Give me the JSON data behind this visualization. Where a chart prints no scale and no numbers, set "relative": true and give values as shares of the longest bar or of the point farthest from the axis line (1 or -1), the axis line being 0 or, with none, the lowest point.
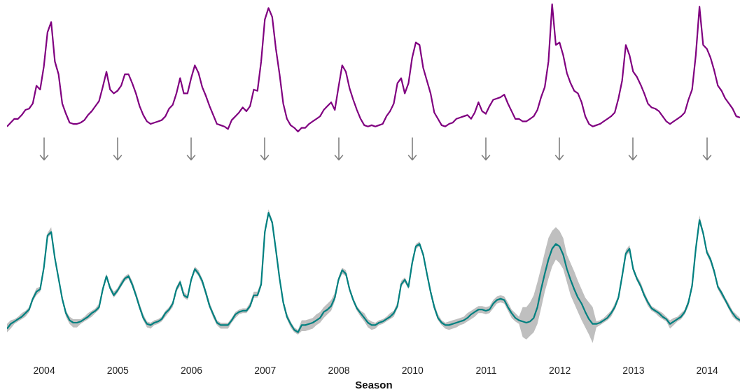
{
  "chart_data": [
    {
      "type": "line",
      "relative": true,
      "tick_labels": false,
      "categories": [
        null,
        null,
        null,
        null,
        null,
        null,
        null,
        null,
        null,
        null,
        "2004",
        null,
        null,
        null,
        null,
        null,
        null,
        null,
        null,
        null,
        null,
        null,
        null,
        null,
        null,
        null,
        null,
        null,
        null,
        null,
        "2005",
        null,
        null,
        null,
        null,
        null,
        null,
        null,
        null,
        null,
        null,
        null,
        null,
        null,
        null,
        null,
        null,
        null,
        null,
        null,
        "2006",
        null,
        null,
        null,
        null,
        null,
        null,
        null,
        null,
        null,
        null,
        null,
        null,
        null,
        null,
        null,
        null,
        null,
        null,
        null,
        "2007",
        null,
        null,
        null,
        null,
        null,
        null,
        null,
        null,
        null,
        null,
        null,
        null,
        null,
        null,
        null,
        null,
        null,
        null,
        null,
        "2008",
        null,
        null,
        null,
        null,
        null,
        null,
        null,
        null,
        null,
        null,
        null,
        null,
        null,
        null,
        null,
        null,
        null,
        null,
        null,
        "2010",
        null,
        null,
        null,
        null,
        null,
        null,
        null,
        null,
        null,
        null,
        null,
        null,
        null,
        null,
        null,
        null,
        null,
        null,
        null,
        "2011",
        null,
        null,
        null,
        null,
        null,
        null,
        null,
        null,
        null,
        null,
        null,
        null,
        null,
        null,
        null,
        null,
        null,
        null,
        null,
        "2012",
        null,
        null,
        null,
        null,
        null,
        null,
        null,
        null,
        null,
        null,
        null,
        null,
        null,
        null,
        null,
        null,
        null,
        null,
        null,
        "2013",
        null,
        null,
        null,
        null,
        null,
        null,
        null,
        null,
        null,
        null,
        null,
        null,
        null,
        null,
        null,
        null,
        null,
        null,
        null,
        "2014",
        null,
        null,
        null,
        null,
        null,
        null,
        null,
        null,
        null
      ],
      "series": [
        {
          "color": "#800080",
          "values": [
            0.04,
            0.07,
            0.1,
            0.1,
            0.13,
            0.17,
            0.18,
            0.22,
            0.36,
            0.33,
            0.51,
            0.78,
            0.86,
            0.55,
            0.45,
            0.22,
            0.14,
            0.07,
            0.06,
            0.06,
            0.07,
            0.09,
            0.13,
            0.16,
            0.2,
            0.24,
            0.35,
            0.47,
            0.33,
            0.3,
            0.32,
            0.36,
            0.45,
            0.45,
            0.38,
            0.3,
            0.2,
            0.13,
            0.08,
            0.06,
            0.07,
            0.08,
            0.09,
            0.12,
            0.18,
            0.21,
            0.3,
            0.42,
            0.3,
            0.3,
            0.42,
            0.52,
            0.46,
            0.35,
            0.28,
            0.2,
            0.13,
            0.06,
            0.05,
            0.04,
            0.02,
            0.09,
            0.12,
            0.15,
            0.19,
            0.16,
            0.2,
            0.33,
            0.32,
            0.55,
            0.88,
            0.97,
            0.9,
            0.65,
            0.45,
            0.22,
            0.1,
            0.05,
            0.03,
            0,
            0.03,
            0.03,
            0.06,
            0.08,
            0.1,
            0.12,
            0.17,
            0.2,
            0.23,
            0.17,
            0.35,
            0.52,
            0.47,
            0.34,
            0.25,
            0.17,
            0.1,
            0.05,
            0.04,
            0.05,
            0.04,
            0.05,
            0.06,
            0.12,
            0.16,
            0.22,
            0.38,
            0.42,
            0.3,
            0.38,
            0.58,
            0.7,
            0.68,
            0.5,
            0.4,
            0.3,
            0.15,
            0.1,
            0.05,
            0.04,
            0.06,
            0.07,
            0.1,
            0.11,
            0.12,
            0.13,
            0.1,
            0.15,
            0.23,
            0.16,
            0.14,
            0.2,
            0.25,
            0.26,
            0.27,
            0.29,
            0.22,
            0.16,
            0.1,
            0.1,
            0.08,
            0.08,
            0.1,
            0.12,
            0.17,
            0.27,
            0.35,
            0.55,
            1,
            0.68,
            0.7,
            0.6,
            0.46,
            0.38,
            0.32,
            0.3,
            0.23,
            0.12,
            0.06,
            0.04,
            0.05,
            0.06,
            0.08,
            0.1,
            0.12,
            0.15,
            0.26,
            0.4,
            0.68,
            0.6,
            0.47,
            0.43,
            0.37,
            0.3,
            0.22,
            0.19,
            0.18,
            0.16,
            0.12,
            0.08,
            0.06,
            0.08,
            0.1,
            0.12,
            0.15,
            0.25,
            0.33,
            0.6,
            0.98,
            0.68,
            0.65,
            0.58,
            0.48,
            0.36,
            0.32,
            0.26,
            0.22,
            0.18,
            0.12,
            0.11
          ]
        }
      ]
    },
    {
      "type": "line",
      "relative": true,
      "xlabel": "Season",
      "categories": [
        null,
        null,
        null,
        null,
        null,
        null,
        null,
        null,
        null,
        null,
        "2004",
        null,
        null,
        null,
        null,
        null,
        null,
        null,
        null,
        null,
        null,
        null,
        null,
        null,
        null,
        null,
        null,
        null,
        null,
        null,
        "2005",
        null,
        null,
        null,
        null,
        null,
        null,
        null,
        null,
        null,
        null,
        null,
        null,
        null,
        null,
        null,
        null,
        null,
        null,
        null,
        "2006",
        null,
        null,
        null,
        null,
        null,
        null,
        null,
        null,
        null,
        null,
        null,
        null,
        null,
        null,
        null,
        null,
        null,
        null,
        null,
        "2007",
        null,
        null,
        null,
        null,
        null,
        null,
        null,
        null,
        null,
        null,
        null,
        null,
        null,
        null,
        null,
        null,
        null,
        null,
        null,
        "2008",
        null,
        null,
        null,
        null,
        null,
        null,
        null,
        null,
        null,
        null,
        null,
        null,
        null,
        null,
        null,
        null,
        null,
        null,
        null,
        "2010",
        null,
        null,
        null,
        null,
        null,
        null,
        null,
        null,
        null,
        null,
        null,
        null,
        null,
        null,
        null,
        null,
        null,
        null,
        null,
        "2011",
        null,
        null,
        null,
        null,
        null,
        null,
        null,
        null,
        null,
        null,
        null,
        null,
        null,
        null,
        null,
        null,
        null,
        null,
        null,
        "2012",
        null,
        null,
        null,
        null,
        null,
        null,
        null,
        null,
        null,
        null,
        null,
        null,
        null,
        null,
        null,
        null,
        null,
        null,
        null,
        "2013",
        null,
        null,
        null,
        null,
        null,
        null,
        null,
        null,
        null,
        null,
        null,
        null,
        null,
        null,
        null,
        null,
        null,
        null,
        null,
        "2014",
        null,
        null,
        null,
        null,
        null,
        null,
        null,
        null,
        null
      ],
      "series": [
        {
          "color": "#008080",
          "values": [
            0.03,
            0.07,
            0.09,
            0.11,
            0.13,
            0.16,
            0.19,
            0.28,
            0.34,
            0.36,
            0.54,
            0.81,
            0.84,
            0.62,
            0.45,
            0.28,
            0.16,
            0.1,
            0.08,
            0.08,
            0.09,
            0.11,
            0.13,
            0.16,
            0.18,
            0.21,
            0.36,
            0.47,
            0.37,
            0.31,
            0.35,
            0.4,
            0.45,
            0.47,
            0.4,
            0.31,
            0.21,
            0.12,
            0.07,
            0.06,
            0.08,
            0.09,
            0.11,
            0.16,
            0.19,
            0.24,
            0.36,
            0.42,
            0.31,
            0.29,
            0.44,
            0.53,
            0.49,
            0.43,
            0.33,
            0.22,
            0.15,
            0.08,
            0.06,
            0.06,
            0.06,
            0.1,
            0.15,
            0.17,
            0.18,
            0.18,
            0.22,
            0.31,
            0.31,
            0.4,
            0.84,
            1,
            0.92,
            0.69,
            0.45,
            0.25,
            0.13,
            0.07,
            0.02,
            0,
            0.06,
            0.06,
            0.07,
            0.08,
            0.1,
            0.12,
            0.17,
            0.19,
            0.22,
            0.29,
            0.44,
            0.52,
            0.49,
            0.36,
            0.27,
            0.2,
            0.16,
            0.12,
            0.08,
            0.06,
            0.06,
            0.08,
            0.09,
            0.11,
            0.13,
            0.16,
            0.22,
            0.4,
            0.44,
            0.38,
            0.58,
            0.72,
            0.74,
            0.65,
            0.49,
            0.34,
            0.21,
            0.12,
            0.08,
            0.06,
            0.06,
            0.07,
            0.08,
            0.09,
            0.1,
            0.12,
            0.15,
            0.17,
            0.19,
            0.19,
            0.18,
            0.19,
            0.24,
            0.27,
            0.28,
            0.27,
            0.21,
            0.16,
            0.12,
            0.1,
            0.09,
            0.08,
            0.09,
            0.12,
            0.21,
            0.36,
            0.49,
            0.61,
            0.7,
            0.74,
            0.72,
            0.65,
            0.53,
            0.44,
            0.36,
            0.29,
            0.24,
            0.17,
            0.11,
            0.07,
            0.07,
            0.08,
            0.1,
            0.12,
            0.16,
            0.21,
            0.29,
            0.47,
            0.66,
            0.7,
            0.53,
            0.45,
            0.39,
            0.31,
            0.25,
            0.2,
            0.18,
            0.16,
            0.13,
            0.11,
            0.07,
            0.09,
            0.11,
            0.13,
            0.17,
            0.25,
            0.39,
            0.7,
            0.94,
            0.83,
            0.67,
            0.61,
            0.51,
            0.38,
            0.33,
            0.27,
            0.21,
            0.16,
            0.12,
            0.1
          ],
          "lower": [
            0,
            0.03,
            0.07,
            0.09,
            0.11,
            0.13,
            0.17,
            0.26,
            0.31,
            0.34,
            0.52,
            0.79,
            0.82,
            0.6,
            0.43,
            0.26,
            0.13,
            0.07,
            0.04,
            0.04,
            0.07,
            0.09,
            0.11,
            0.13,
            0.16,
            0.19,
            0.34,
            0.45,
            0.35,
            0.29,
            0.33,
            0.38,
            0.43,
            0.45,
            0.38,
            0.29,
            0.19,
            0.1,
            0.04,
            0.03,
            0.06,
            0.07,
            0.09,
            0.13,
            0.17,
            0.21,
            0.34,
            0.39,
            0.29,
            0.27,
            0.42,
            0.51,
            0.47,
            0.4,
            0.3,
            0.2,
            0.12,
            0.06,
            0.03,
            0.03,
            0.03,
            0.08,
            0.12,
            0.15,
            0.16,
            0.16,
            0.2,
            0.29,
            0.29,
            0.38,
            0.82,
            0.98,
            0.9,
            0.66,
            0.43,
            0.22,
            0.11,
            0.04,
            0,
            -0.02,
            0.01,
            0.01,
            0.02,
            0.03,
            0.06,
            0.08,
            0.12,
            0.15,
            0.18,
            0.26,
            0.42,
            0.49,
            0.47,
            0.34,
            0.25,
            0.18,
            0.13,
            0.09,
            0.04,
            0.02,
            0.03,
            0.06,
            0.07,
            0.09,
            0.11,
            0.13,
            0.2,
            0.38,
            0.42,
            0.36,
            0.56,
            0.7,
            0.72,
            0.63,
            0.47,
            0.31,
            0.19,
            0.1,
            0.06,
            0.03,
            0.02,
            0.03,
            0.04,
            0.06,
            0.07,
            0.09,
            0.11,
            0.13,
            0.16,
            0.16,
            0.15,
            0.16,
            0.2,
            0.24,
            0.25,
            0.24,
            0.18,
            0.12,
            0.09,
            0.07,
            -0.04,
            -0.06,
            -0.03,
            0,
            0.07,
            0.2,
            0.34,
            0.45,
            0.55,
            0.61,
            0.58,
            0.53,
            0.42,
            0.31,
            0.24,
            0.17,
            0.1,
            0.04,
            -0.02,
            -0.09,
            0.04,
            0.06,
            0.08,
            0.1,
            0.13,
            0.19,
            0.27,
            0.45,
            0.64,
            0.67,
            0.51,
            0.43,
            0.37,
            0.29,
            0.22,
            0.18,
            0.16,
            0.13,
            0.11,
            0.09,
            0.03,
            0.06,
            0.09,
            0.11,
            0.15,
            0.22,
            0.37,
            0.67,
            0.92,
            0.81,
            0.65,
            0.58,
            0.48,
            0.36,
            0.3,
            0.25,
            0.19,
            0.13,
            0.1,
            0.08
          ],
          "upper": [
            0.07,
            0.1,
            0.11,
            0.13,
            0.16,
            0.18,
            0.21,
            0.3,
            0.37,
            0.38,
            0.56,
            0.83,
            0.88,
            0.64,
            0.47,
            0.3,
            0.18,
            0.13,
            0.11,
            0.11,
            0.11,
            0.13,
            0.16,
            0.18,
            0.2,
            0.24,
            0.38,
            0.49,
            0.39,
            0.34,
            0.37,
            0.43,
            0.47,
            0.49,
            0.43,
            0.34,
            0.24,
            0.15,
            0.09,
            0.08,
            0.1,
            0.11,
            0.13,
            0.18,
            0.21,
            0.26,
            0.38,
            0.44,
            0.34,
            0.31,
            0.46,
            0.55,
            0.52,
            0.45,
            0.35,
            0.25,
            0.17,
            0.1,
            0.08,
            0.08,
            0.08,
            0.12,
            0.17,
            0.19,
            0.2,
            0.2,
            0.25,
            0.34,
            0.34,
            0.43,
            0.87,
            1.03,
            0.94,
            0.71,
            0.47,
            0.27,
            0.16,
            0.09,
            0.04,
            0.02,
            0.1,
            0.1,
            0.11,
            0.12,
            0.15,
            0.17,
            0.21,
            0.24,
            0.27,
            0.33,
            0.46,
            0.54,
            0.52,
            0.38,
            0.29,
            0.22,
            0.18,
            0.16,
            0.11,
            0.09,
            0.08,
            0.1,
            0.11,
            0.13,
            0.16,
            0.18,
            0.25,
            0.43,
            0.46,
            0.4,
            0.61,
            0.74,
            0.76,
            0.67,
            0.52,
            0.36,
            0.24,
            0.15,
            0.1,
            0.08,
            0.09,
            0.1,
            0.11,
            0.12,
            0.13,
            0.16,
            0.18,
            0.2,
            0.22,
            0.22,
            0.21,
            0.22,
            0.27,
            0.3,
            0.31,
            0.3,
            0.25,
            0.19,
            0.16,
            0.13,
            0.21,
            0.21,
            0.25,
            0.31,
            0.42,
            0.54,
            0.67,
            0.79,
            0.85,
            0.88,
            0.85,
            0.79,
            0.65,
            0.58,
            0.51,
            0.43,
            0.36,
            0.29,
            0.25,
            0.21,
            0.09,
            0.1,
            0.12,
            0.15,
            0.18,
            0.24,
            0.31,
            0.49,
            0.69,
            0.73,
            0.55,
            0.47,
            0.42,
            0.34,
            0.27,
            0.22,
            0.2,
            0.18,
            0.16,
            0.13,
            0.1,
            0.12,
            0.13,
            0.16,
            0.19,
            0.27,
            0.42,
            0.72,
            0.98,
            0.85,
            0.7,
            0.63,
            0.53,
            0.4,
            0.35,
            0.29,
            0.24,
            0.18,
            0.15,
            0.12
          ]
        }
      ]
    }
  ]
}
